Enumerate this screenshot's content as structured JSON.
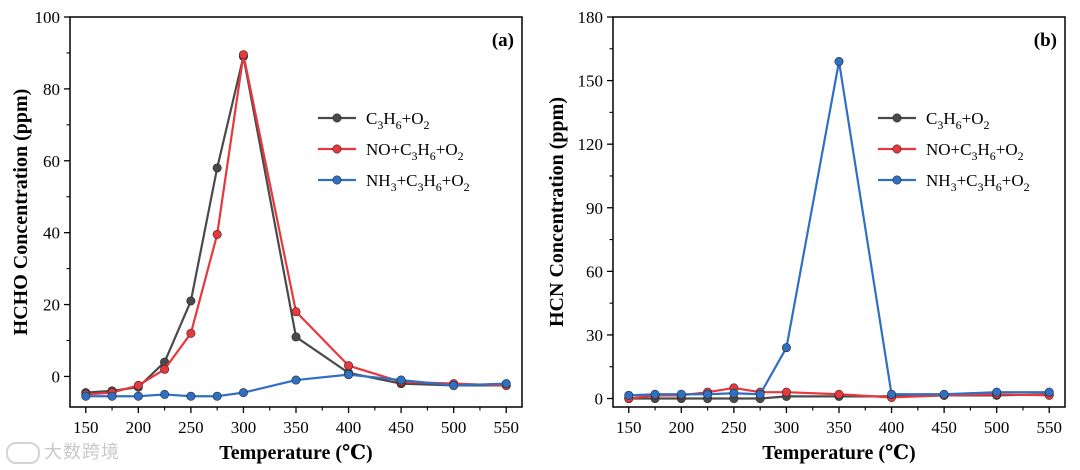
{
  "chart_data": [
    {
      "type": "line",
      "panel_label": "(a)",
      "xlabel": "Temperature (℃)",
      "ylabel": "HCHO Concentration (ppm)",
      "xlim": [
        135,
        565
      ],
      "ylim": [
        -8.5,
        100
      ],
      "xticks": [
        150,
        200,
        250,
        300,
        350,
        400,
        450,
        500,
        550
      ],
      "yticks": [
        0,
        20,
        40,
        60,
        80,
        100
      ],
      "legend_position": "center-right",
      "series": [
        {
          "name": "C3H6+O2",
          "legend_parts": [
            "C",
            "3",
            "H",
            "6",
            "+O",
            "2"
          ],
          "color": "#4a4a4a",
          "x": [
            150,
            175,
            200,
            225,
            250,
            275,
            300,
            350,
            400,
            450,
            500,
            550
          ],
          "y": [
            -4.5,
            -4,
            -3,
            4,
            21,
            58,
            89,
            11,
            1,
            -2,
            -2.5,
            -2.5
          ]
        },
        {
          "name": "NO+C3H6+O2",
          "legend_parts": [
            "NO+C",
            "3",
            "H",
            "6",
            "+O",
            "2"
          ],
          "color": "#e8383d",
          "x": [
            150,
            175,
            200,
            225,
            250,
            275,
            300,
            350,
            400,
            450,
            500,
            550
          ],
          "y": [
            -5,
            -4.5,
            -2.5,
            2,
            12,
            39.5,
            89.5,
            18,
            3,
            -1.5,
            -2,
            -2.5
          ]
        },
        {
          "name": "NH3+C3H6+O2",
          "legend_parts": [
            "NH",
            "3",
            "+C",
            "3",
            "H",
            "6",
            "+O",
            "2"
          ],
          "color": "#2f6fc4",
          "x": [
            150,
            175,
            200,
            225,
            250,
            275,
            300,
            350,
            400,
            450,
            500,
            550
          ],
          "y": [
            -5.5,
            -5.5,
            -5.5,
            -5,
            -5.5,
            -5.5,
            -4.5,
            -1,
            0.5,
            -1,
            -2.5,
            -2
          ]
        }
      ]
    },
    {
      "type": "line",
      "panel_label": "(b)",
      "xlabel": "Temperature (℃)",
      "ylabel": "HCN Concentration (ppm)",
      "xlim": [
        135,
        565
      ],
      "ylim": [
        -4,
        180
      ],
      "xticks": [
        150,
        200,
        250,
        300,
        350,
        400,
        450,
        500,
        550
      ],
      "yticks": [
        0,
        30,
        60,
        90,
        120,
        150,
        180
      ],
      "legend_position": "center-right",
      "series": [
        {
          "name": "C3H6+O2",
          "legend_parts": [
            "C",
            "3",
            "H",
            "6",
            "+O",
            "2"
          ],
          "color": "#4a4a4a",
          "x": [
            150,
            175,
            200,
            225,
            250,
            275,
            300,
            350,
            400,
            450,
            500,
            550
          ],
          "y": [
            0,
            0,
            0,
            0,
            0,
            0,
            1,
            1,
            1,
            1.5,
            1.5,
            2
          ]
        },
        {
          "name": "NO+C3H6+O2",
          "legend_parts": [
            "NO+C",
            "3",
            "H",
            "6",
            "+O",
            "2"
          ],
          "color": "#e8383d",
          "x": [
            150,
            175,
            200,
            225,
            250,
            275,
            300,
            350,
            400,
            450,
            500,
            550
          ],
          "y": [
            0,
            1.5,
            1.5,
            3,
            5,
            3,
            3,
            2,
            0.5,
            1.5,
            2,
            1.5
          ]
        },
        {
          "name": "NH3+C3H6+O2",
          "legend_parts": [
            "NH",
            "3",
            "+C",
            "3",
            "H",
            "6",
            "+O",
            "2"
          ],
          "color": "#2f6fc4",
          "x": [
            150,
            175,
            200,
            225,
            250,
            275,
            300,
            350,
            400,
            450,
            500,
            550
          ],
          "y": [
            1.5,
            2,
            2,
            2,
            2.5,
            2,
            24,
            159,
            2,
            2,
            3,
            3
          ]
        }
      ]
    }
  ],
  "watermark": "大数跨境"
}
